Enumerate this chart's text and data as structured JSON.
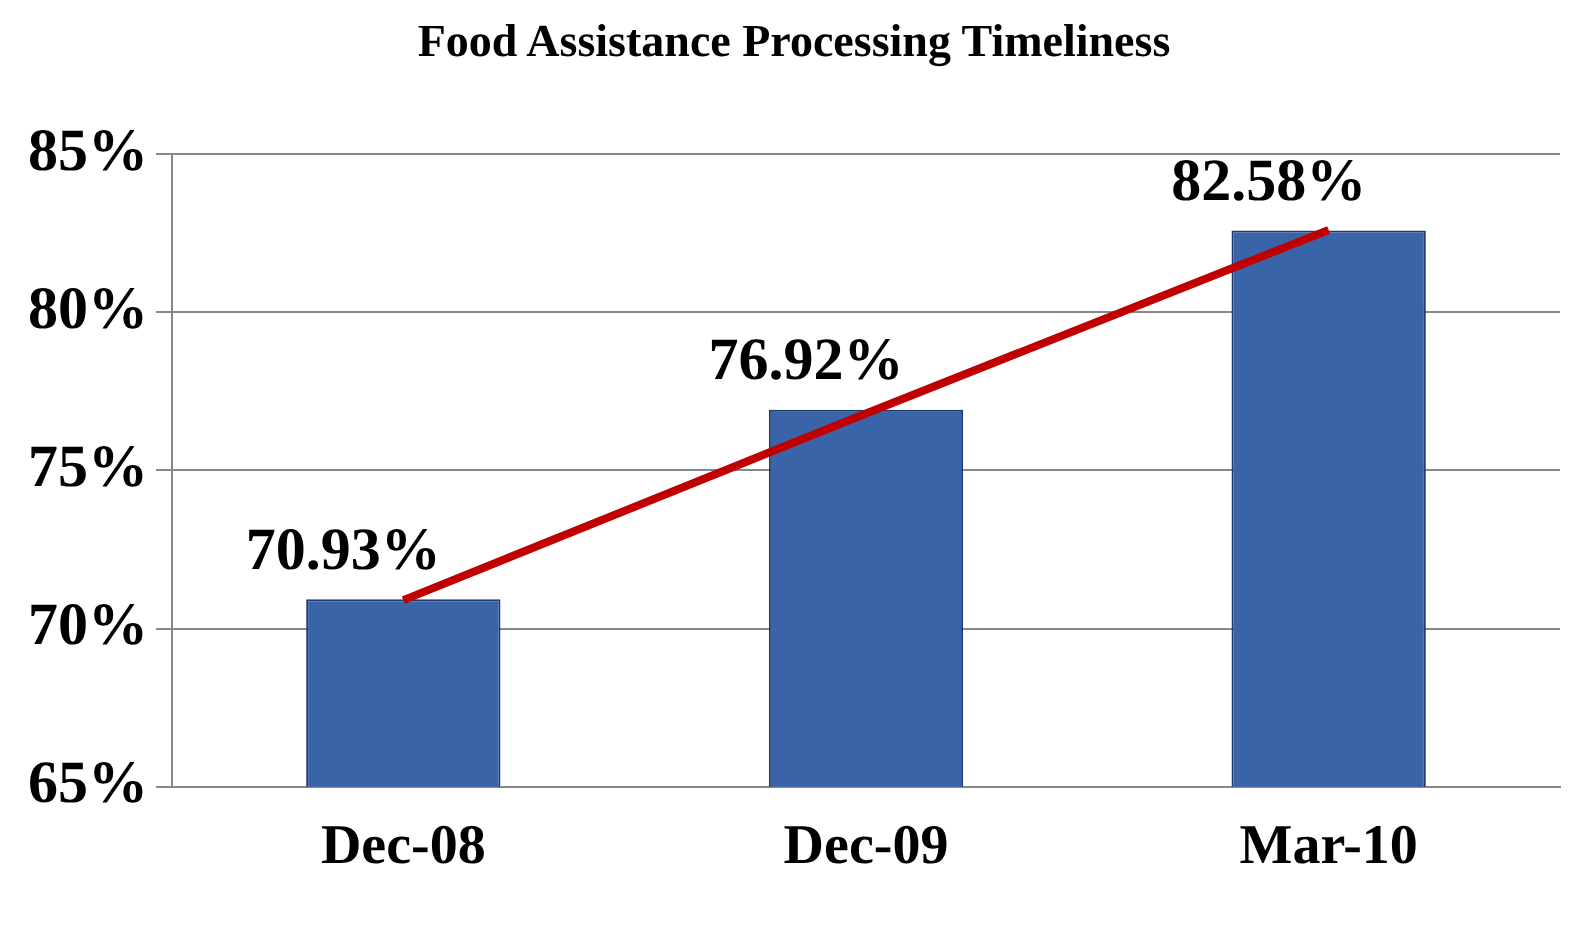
{
  "chart_data": {
    "type": "bar",
    "title": "Food Assistance Processing Timeliness",
    "categories": [
      "Dec-08",
      "Dec-09",
      "Mar-10"
    ],
    "series": [
      {
        "color": "#3a64a8",
        "values": [
          70.93,
          76.92,
          82.58
        ],
        "value_labels": [
          "70.93%",
          "76.92%",
          "82.58%"
        ]
      },
      {
        "type": "line",
        "color": "#c00000",
        "values": [
          70.9,
          76.8,
          82.6
        ],
        "marker": "none",
        "line_style": "solid"
      }
    ],
    "ylim": [
      65,
      85
    ],
    "yticks": [
      {
        "value": 65,
        "label": "65%"
      },
      {
        "value": 70,
        "label": "70%"
      },
      {
        "value": 75,
        "label": "75%"
      },
      {
        "value": 80,
        "label": "80%"
      },
      {
        "value": 85,
        "label": "85%"
      }
    ],
    "grid": "y",
    "legend": false
  }
}
